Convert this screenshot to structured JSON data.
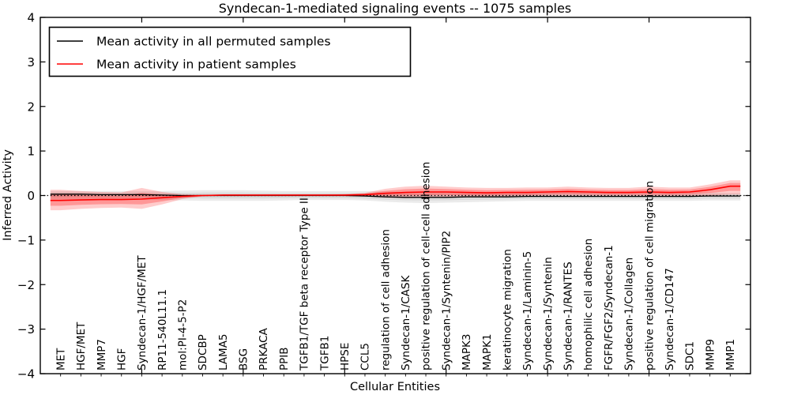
{
  "title": "Syndecan-1-mediated signaling events -- 1075 samples",
  "axes": {
    "xlabel": "Cellular Entities",
    "ylabel": "Inferred Activity",
    "y_ticks": [
      "4",
      "3",
      "2",
      "1",
      "0",
      "−1",
      "−2",
      "−3",
      "−4"
    ]
  },
  "legend": {
    "entries": [
      {
        "label": "Mean activity in all permuted samples",
        "color": "#000000"
      },
      {
        "label": "Mean activity in patient samples",
        "color": "#ff0000"
      }
    ]
  },
  "colors": {
    "patient_line": "#ff0000",
    "permuted_line": "#000000",
    "zero_line": "#000000",
    "frame": "#000000"
  },
  "chart_data": {
    "type": "line",
    "title": "Syndecan-1-mediated signaling events -- 1075 samples",
    "xlabel": "Cellular Entities",
    "ylabel": "Inferred Activity",
    "ylim": [
      -4,
      4
    ],
    "grid": false,
    "legend_position": "upper left",
    "zero_reference_line": 0,
    "categories": [
      "MET",
      "HGF/MET",
      "MMP7",
      "HGF",
      "Syndecan-1/HGF/MET",
      "RP11-540L11.1",
      "mol:PI-4-5-P2",
      "SDCBP",
      "LAMA5",
      "BSG",
      "PRKACA",
      "PPIB",
      "TGFB1/TGF beta receptor Type II",
      "TGFB1",
      "HPSE",
      "CCL5",
      "regulation of cell adhesion",
      "Syndecan-1/CASK",
      "positive regulation of cell-cell adhesion",
      "Syndecan-1/Syntenin/PIP2",
      "MAPK3",
      "MAPK1",
      "keratinocyte migration",
      "Syndecan-1/Laminin-5",
      "Syndecan-1/Syntenin",
      "Syndecan-1/RANTES",
      "homophilic cell adhesion",
      "FGFR/FGF2/Syndecan-1",
      "Syndecan-1/Collagen",
      "positive regulation of cell migration",
      "Syndecan-1/CD147",
      "SDC1",
      "MMP9",
      "MMP1"
    ],
    "series": [
      {
        "name": "Mean activity in all permuted samples",
        "color": "#000000",
        "values": [
          0.03,
          0.03,
          0.02,
          0.02,
          0.02,
          0.01,
          0.0,
          0.0,
          0.0,
          0.0,
          0.0,
          0.0,
          0.0,
          0.0,
          0.0,
          -0.01,
          -0.03,
          -0.04,
          -0.04,
          -0.04,
          -0.03,
          -0.03,
          -0.03,
          -0.02,
          -0.02,
          -0.02,
          -0.02,
          -0.02,
          -0.02,
          -0.02,
          -0.02,
          -0.02,
          -0.01,
          -0.01
        ],
        "band_upper": [
          0.1,
          0.1,
          0.1,
          0.1,
          0.1,
          0.1,
          0.11,
          0.12,
          0.12,
          0.12,
          0.11,
          0.1,
          0.1,
          0.1,
          0.1,
          0.1,
          0.09,
          0.08,
          0.08,
          0.08,
          0.08,
          0.08,
          0.08,
          0.08,
          0.08,
          0.08,
          0.08,
          0.08,
          0.08,
          0.08,
          0.08,
          0.08,
          0.07,
          0.06
        ],
        "band_lower": [
          -0.08,
          -0.08,
          -0.09,
          -0.09,
          -0.09,
          -0.1,
          -0.11,
          -0.12,
          -0.12,
          -0.12,
          -0.12,
          -0.11,
          -0.1,
          -0.1,
          -0.1,
          -0.11,
          -0.14,
          -0.16,
          -0.17,
          -0.16,
          -0.15,
          -0.14,
          -0.13,
          -0.12,
          -0.12,
          -0.12,
          -0.12,
          -0.12,
          -0.12,
          -0.12,
          -0.12,
          -0.12,
          -0.11,
          -0.11
        ]
      },
      {
        "name": "Mean activity in patient samples",
        "color": "#ff0000",
        "values": [
          -0.11,
          -0.1,
          -0.09,
          -0.09,
          -0.08,
          -0.05,
          -0.02,
          0.0,
          0.01,
          0.01,
          0.01,
          0.01,
          0.01,
          0.01,
          0.01,
          0.02,
          0.05,
          0.07,
          0.08,
          0.08,
          0.07,
          0.06,
          0.07,
          0.07,
          0.08,
          0.09,
          0.08,
          0.07,
          0.07,
          0.08,
          0.07,
          0.08,
          0.13,
          0.21
        ],
        "band_upper": [
          0.13,
          0.1,
          0.08,
          0.07,
          0.17,
          0.08,
          0.03,
          0.02,
          0.02,
          0.02,
          0.02,
          0.02,
          0.02,
          0.02,
          0.03,
          0.06,
          0.15,
          0.2,
          0.22,
          0.2,
          0.18,
          0.17,
          0.17,
          0.18,
          0.18,
          0.2,
          0.18,
          0.17,
          0.17,
          0.2,
          0.18,
          0.18,
          0.25,
          0.34
        ],
        "band_lower": [
          -0.33,
          -0.3,
          -0.28,
          -0.27,
          -0.3,
          -0.2,
          -0.08,
          -0.02,
          -0.01,
          -0.01,
          -0.01,
          -0.01,
          -0.01,
          -0.01,
          -0.01,
          -0.02,
          -0.05,
          -0.06,
          -0.05,
          -0.04,
          -0.04,
          -0.04,
          -0.03,
          -0.03,
          -0.02,
          -0.02,
          -0.02,
          -0.02,
          -0.02,
          -0.02,
          -0.02,
          -0.01,
          0.0,
          0.02
        ]
      }
    ]
  }
}
